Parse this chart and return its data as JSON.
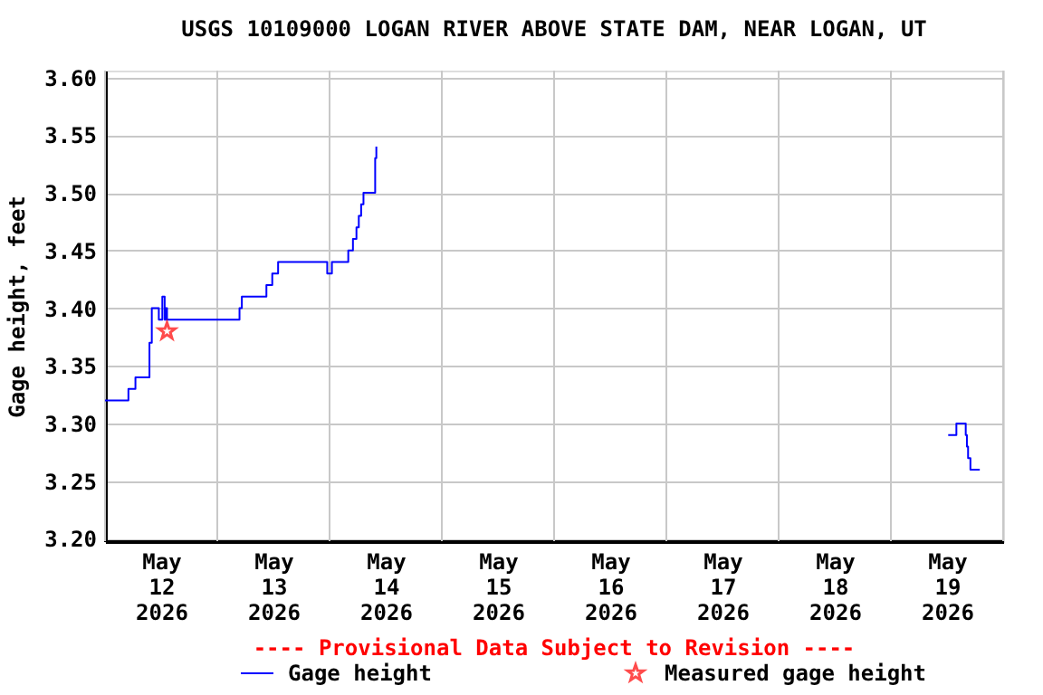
{
  "chart_data": {
    "type": "step",
    "title": "USGS 10109000 LOGAN RIVER ABOVE STATE DAM, NEAR LOGAN, UT",
    "ylabel": "Gage height, feet",
    "annotations": [
      "---- Provisional Data Subject to Revision ----"
    ],
    "xlim": [
      "2026-05-12T00:00",
      "2026-05-20T00:00"
    ],
    "xticks": [
      {
        "value": "2026-05-12T00:00",
        "label": null
      },
      {
        "value": "2026-05-12T12:00",
        "label": "May\n12\n2026"
      },
      {
        "value": "2026-05-13T00:00",
        "label": null
      },
      {
        "value": "2026-05-13T12:00",
        "label": "May\n13\n2026"
      },
      {
        "value": "2026-05-14T00:00",
        "label": null
      },
      {
        "value": "2026-05-14T12:00",
        "label": "May\n14\n2026"
      },
      {
        "value": "2026-05-15T00:00",
        "label": null
      },
      {
        "value": "2026-05-15T12:00",
        "label": "May\n15\n2026"
      },
      {
        "value": "2026-05-16T00:00",
        "label": null
      },
      {
        "value": "2026-05-16T12:00",
        "label": "May\n16\n2026"
      },
      {
        "value": "2026-05-17T00:00",
        "label": null
      },
      {
        "value": "2026-05-17T12:00",
        "label": "May\n17\n2026"
      },
      {
        "value": "2026-05-18T00:00",
        "label": null
      },
      {
        "value": "2026-05-18T12:00",
        "label": "May\n18\n2026"
      },
      {
        "value": "2026-05-19T00:00",
        "label": null
      },
      {
        "value": "2026-05-19T12:00",
        "label": "May\n19\n2026"
      },
      {
        "value": "2026-05-20T00:00",
        "label": null
      }
    ],
    "ylim": [
      3.198,
      3.606
    ],
    "yticks": [
      {
        "value": 3.2,
        "label": "3.20"
      },
      {
        "value": 3.25,
        "label": "3.25"
      },
      {
        "value": 3.3,
        "label": "3.30"
      },
      {
        "value": 3.35,
        "label": "3.35"
      },
      {
        "value": 3.4,
        "label": "3.40"
      },
      {
        "value": 3.45,
        "label": "3.45"
      },
      {
        "value": 3.5,
        "label": "3.50"
      },
      {
        "value": 3.55,
        "label": "3.55"
      },
      {
        "value": 3.6,
        "label": "3.60"
      }
    ],
    "grid": true,
    "legend": "bottom",
    "series": [
      {
        "name": "Gage height",
        "type": "step",
        "color": "#0000ff",
        "marker": "none",
        "x": [
          "2026-05-12T00:00",
          "2026-05-12T05:00",
          "2026-05-12T06:30",
          "2026-05-12T09:30",
          "2026-05-12T10:00",
          "2026-05-12T11:30",
          "2026-05-12T12:15",
          "2026-05-12T12:45",
          "2026-05-12T13:00",
          "2026-05-12T13:15",
          "2026-05-13T04:45",
          "2026-05-13T05:15",
          "2026-05-13T10:30",
          "2026-05-13T11:45",
          "2026-05-13T13:00",
          "2026-05-13T23:30",
          "2026-05-14T00:30",
          "2026-05-14T04:00",
          "2026-05-14T05:00",
          "2026-05-14T05:45",
          "2026-05-14T06:15",
          "2026-05-14T06:45",
          "2026-05-14T07:15",
          "2026-05-14T09:45",
          "2026-05-14T10:00",
          "2026-05-14T10:15",
          "2026-05-19T12:15",
          "2026-05-19T14:00",
          "2026-05-19T16:00",
          "2026-05-19T16:15",
          "2026-05-19T16:30",
          "2026-05-19T17:00",
          "2026-05-19T19:00"
        ],
        "values": [
          3.32,
          3.33,
          3.34,
          3.37,
          3.4,
          3.39,
          3.41,
          3.39,
          3.4,
          3.39,
          3.4,
          3.41,
          3.42,
          3.43,
          3.44,
          3.43,
          3.44,
          3.45,
          3.46,
          3.47,
          3.48,
          3.49,
          3.5,
          3.53,
          3.54,
          null,
          3.29,
          3.3,
          3.29,
          3.28,
          3.27,
          3.26,
          3.26
        ]
      },
      {
        "name": "Measured gage height",
        "type": "scatter",
        "color": "#ff0000",
        "marker": "star",
        "x": [
          "2026-05-12T13:15"
        ],
        "values": [
          3.38
        ]
      }
    ]
  }
}
